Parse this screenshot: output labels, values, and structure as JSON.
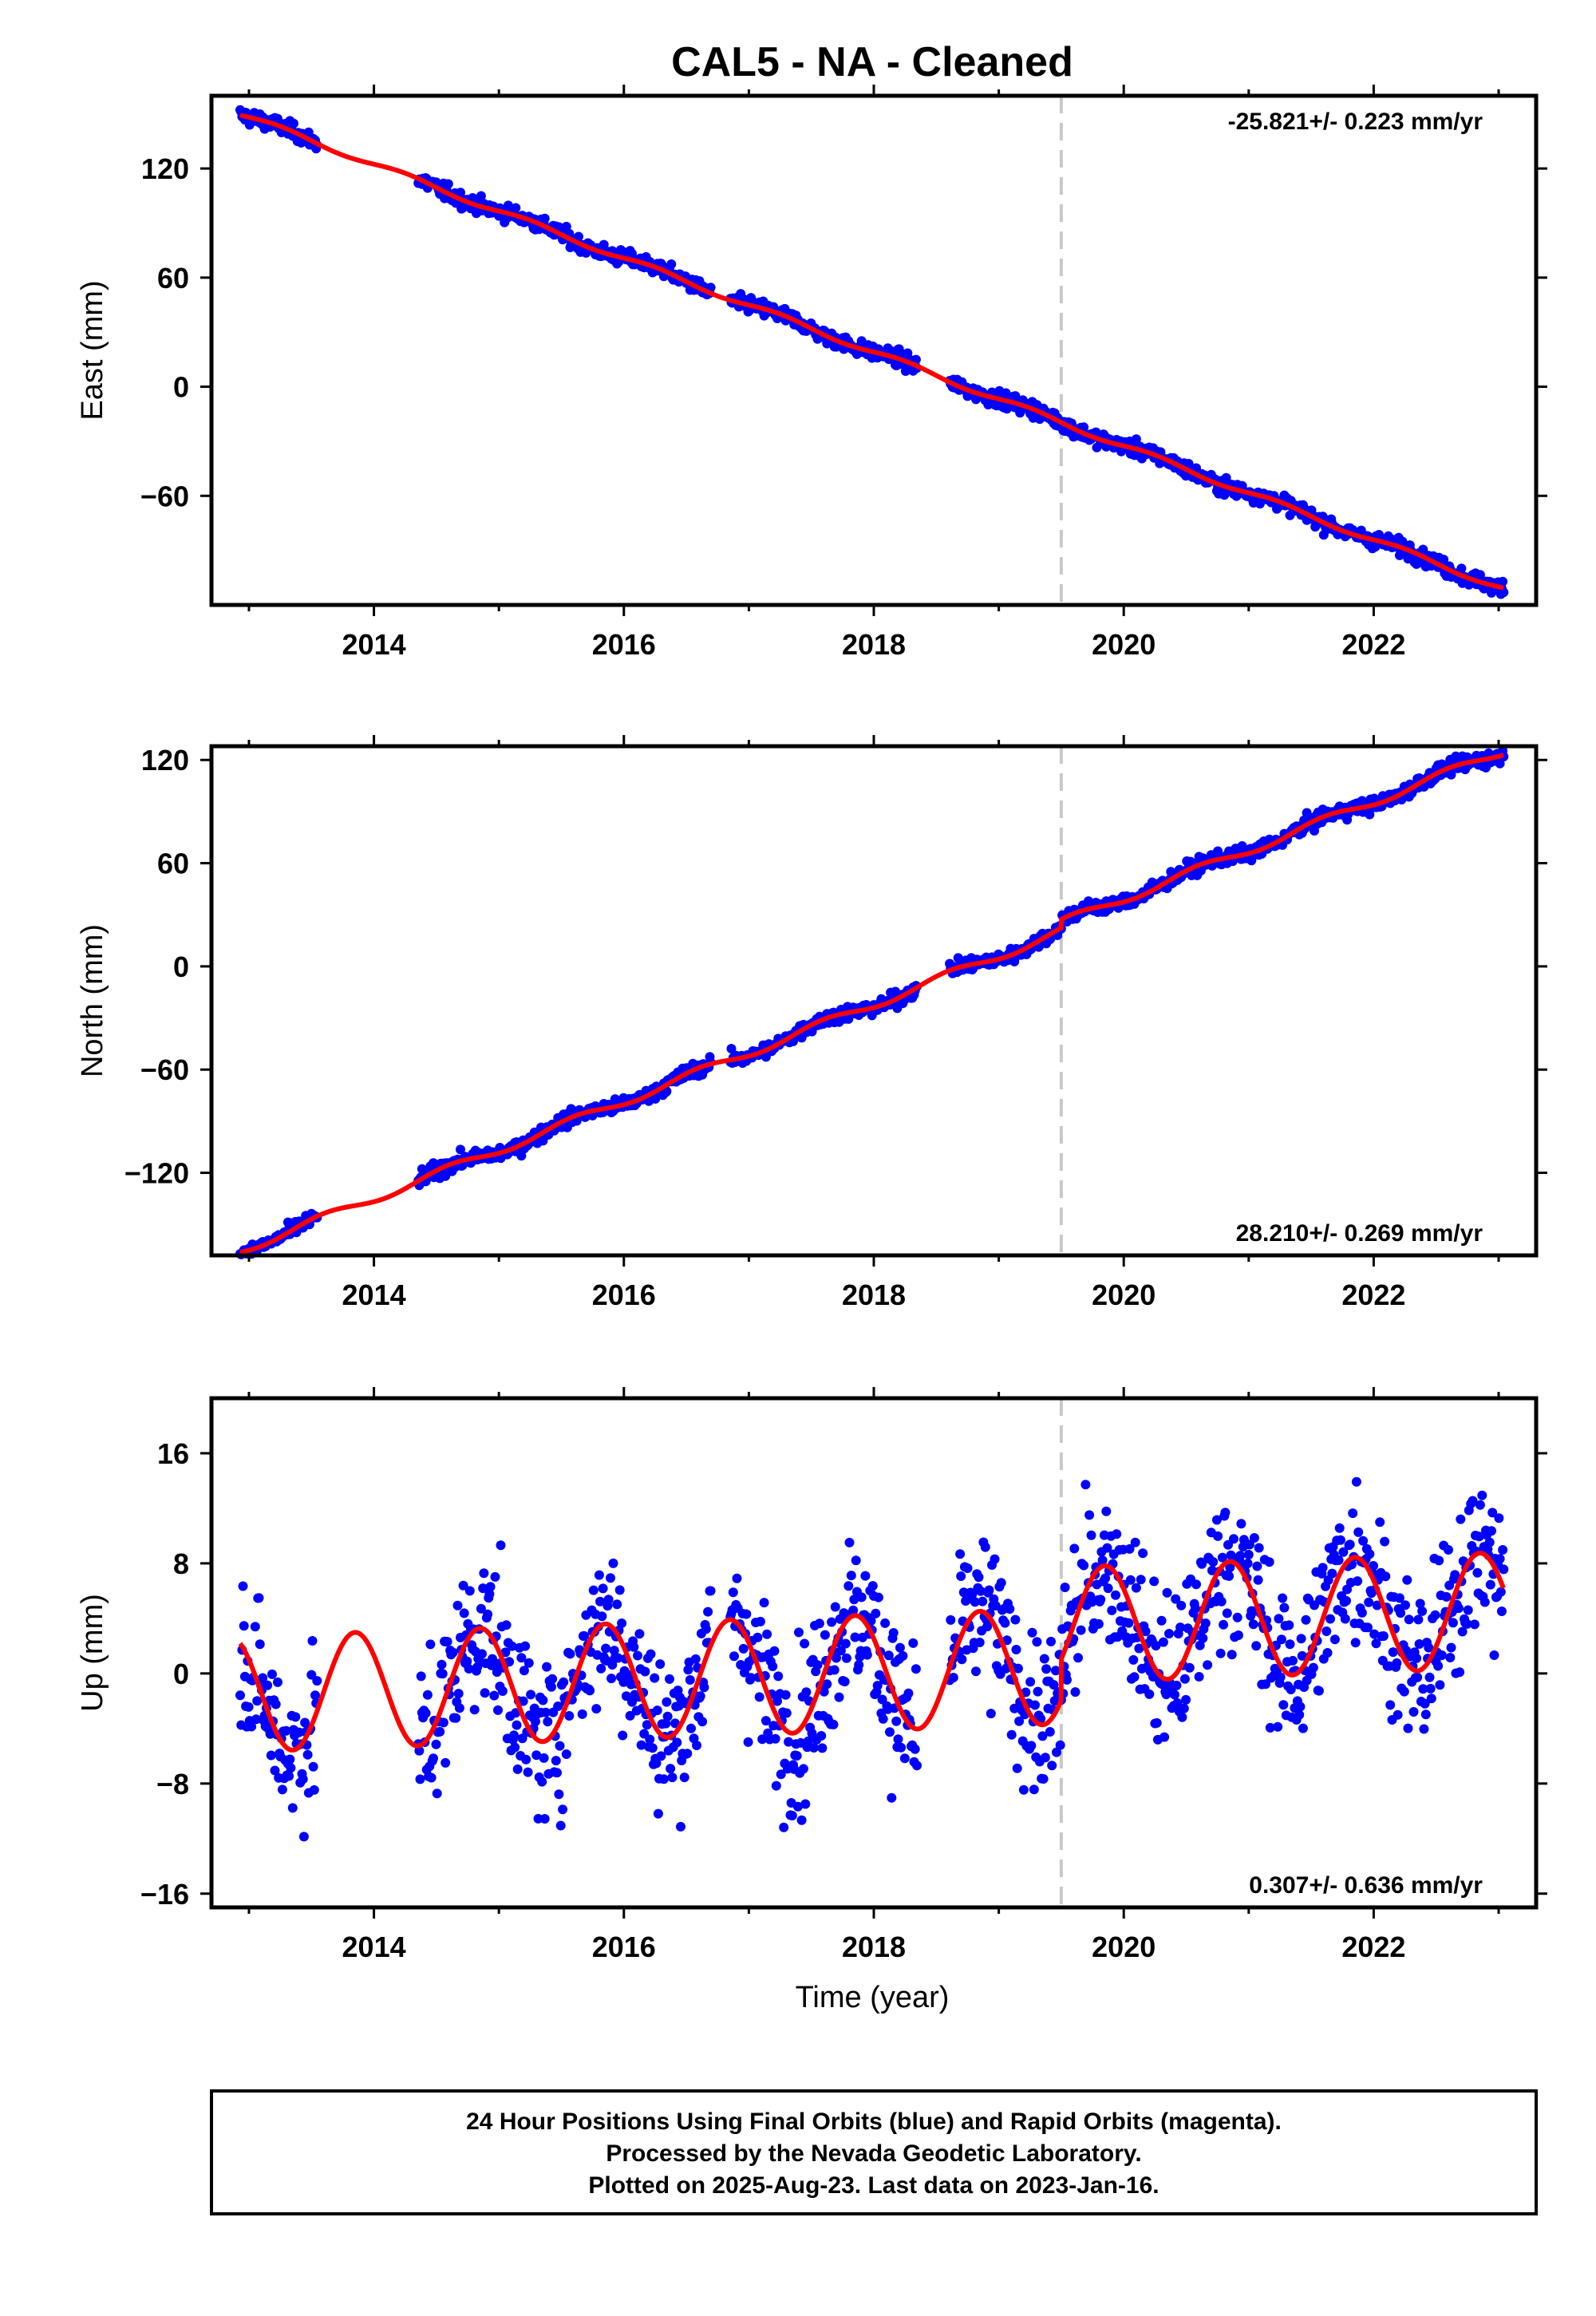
{
  "title": "CAL5  - NA - Cleaned",
  "xlabel": "Time (year)",
  "colors": {
    "points": "#0000ff",
    "model": "#ff0000",
    "step_marker": "#c8c8c8",
    "frame": "#000000"
  },
  "footer": {
    "line1": "24 Hour Positions Using Final Orbits (blue) and Rapid Orbits (magenta).",
    "line2": "Processed by the Nevada Geodetic Laboratory.",
    "line3": "Plotted on 2025-Aug-23. Last data on 2023-Jan-16."
  },
  "chart_data": [
    {
      "type": "scatter",
      "name": "east",
      "ylabel": "East (mm)",
      "rate_label": "-25.821+/- 0.223 mm/yr",
      "rate_position": "top-right",
      "xlim": [
        2012.7,
        2023.3
      ],
      "ylim": [
        -120,
        160
      ],
      "xticks": [
        2014,
        2016,
        2018,
        2020,
        2022
      ],
      "yticks": [
        -60,
        0,
        60,
        120
      ],
      "step_marker_x": 2019.5,
      "data_span": [
        2012.93,
        2023.04
      ],
      "gaps": [
        [
          2013.55,
          2014.35
        ],
        [
          2016.7,
          2016.85
        ],
        [
          2018.35,
          2018.6
        ]
      ],
      "model_trend_per_year": -25.821,
      "model_anchor": {
        "x": 2012.93,
        "y": 150
      },
      "model_seasonal": {
        "amplitude": 1.5,
        "phase_peak": 0.25
      },
      "model_step": {
        "x": 2019.5,
        "offset": 0
      },
      "scatter_noise": 3
    },
    {
      "type": "scatter",
      "name": "north",
      "ylabel": "North (mm)",
      "rate_label": "28.210+/- 0.269 mm/yr",
      "rate_position": "bottom-right",
      "xlim": [
        2012.7,
        2023.3
      ],
      "ylim": [
        -168,
        128
      ],
      "xticks": [
        2014,
        2016,
        2018,
        2020,
        2022
      ],
      "yticks": [
        -120,
        -60,
        0,
        60,
        120
      ],
      "step_marker_x": 2019.5,
      "data_span": [
        2012.93,
        2023.04
      ],
      "gaps": [
        [
          2013.55,
          2014.35
        ],
        [
          2016.7,
          2016.85
        ],
        [
          2018.35,
          2018.6
        ]
      ],
      "model_trend_per_year": 28.21,
      "model_anchor": {
        "x": 2012.93,
        "y": -165
      },
      "model_seasonal": {
        "amplitude": 2.5,
        "phase_peak": 0.6
      },
      "model_step": {
        "x": 2019.5,
        "offset": 5
      },
      "scatter_noise": 3
    },
    {
      "type": "scatter",
      "name": "up",
      "ylabel": "Up (mm)",
      "rate_label": "0.307+/- 0.636 mm/yr",
      "rate_position": "bottom-right",
      "xlim": [
        2012.7,
        2023.3
      ],
      "ylim": [
        -17,
        20
      ],
      "xticks": [
        2014,
        2016,
        2018,
        2020,
        2022
      ],
      "yticks": [
        -16,
        -8,
        0,
        8,
        16
      ],
      "step_marker_x": 2019.5,
      "data_span": [
        2012.93,
        2023.04
      ],
      "gaps": [
        [
          2013.55,
          2014.35
        ],
        [
          2016.7,
          2016.85
        ],
        [
          2018.35,
          2018.6
        ]
      ],
      "model_trend_per_year": 0.307,
      "model_anchor": {
        "x": 2012.93,
        "y": -1.5
      },
      "model_seasonal": {
        "amplitude": 4.2,
        "phase_peak": 0.85
      },
      "model_step": {
        "x": 2019.5,
        "offset": 3
      },
      "scatter_noise": 4
    }
  ]
}
